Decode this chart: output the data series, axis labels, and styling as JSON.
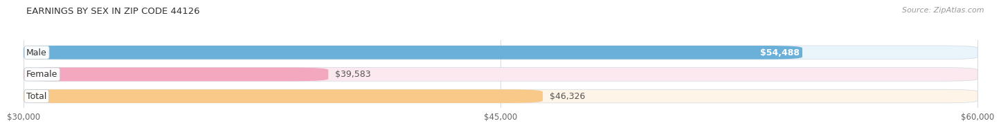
{
  "title": "EARNINGS BY SEX IN ZIP CODE 44126",
  "source": "Source: ZipAtlas.com",
  "categories": [
    "Male",
    "Female",
    "Total"
  ],
  "values": [
    54488,
    39583,
    46326
  ],
  "bar_colors": [
    "#6ab0d8",
    "#f4a8bf",
    "#f9c98a"
  ],
  "bar_bg_colors": [
    "#eaf4fb",
    "#fce9f0",
    "#fef4e8"
  ],
  "value_labels": [
    "$54,488",
    "$39,583",
    "$46,326"
  ],
  "value_label_inside": [
    true,
    false,
    false
  ],
  "x_min": 30000,
  "x_max": 60000,
  "x_ticks": [
    30000,
    45000,
    60000
  ],
  "x_tick_labels": [
    "$30,000",
    "$45,000",
    "$60,000"
  ],
  "bg_color": "#ffffff",
  "title_fontsize": 9.5,
  "source_fontsize": 8,
  "bar_label_fontsize": 9,
  "value_fontsize": 9,
  "tick_fontsize": 8.5,
  "bar_height": 0.62,
  "bar_gap": 0.18
}
